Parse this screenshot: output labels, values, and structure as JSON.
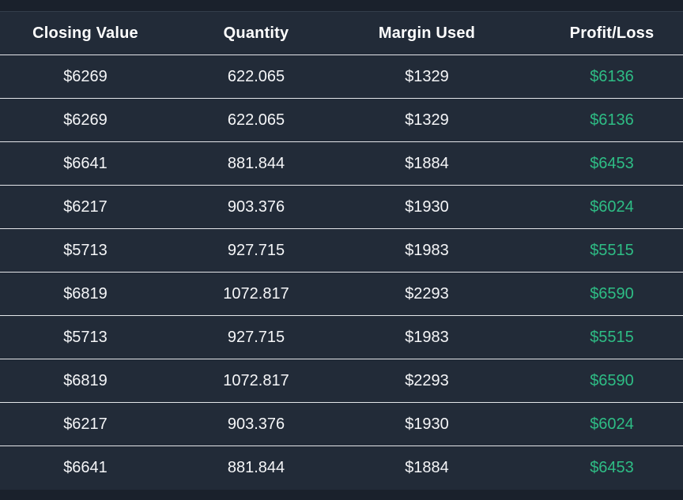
{
  "colors": {
    "page_background": "#1a212c",
    "table_background": "#222b38",
    "row_separator": "#e4e6e9",
    "header_text": "#ffffff",
    "cell_text": "#f5f6f8",
    "profit_green": "#2ebd85"
  },
  "table": {
    "columns": [
      {
        "label": "Closing Value"
      },
      {
        "label": "Quantity"
      },
      {
        "label": "Margin Used"
      },
      {
        "label": "Profit/Loss"
      }
    ],
    "rows": [
      {
        "closing_value": "$6269",
        "quantity": "622.065",
        "margin_used": "$1329",
        "profit_loss": "$6136"
      },
      {
        "closing_value": "$6269",
        "quantity": "622.065",
        "margin_used": "$1329",
        "profit_loss": "$6136"
      },
      {
        "closing_value": "$6641",
        "quantity": "881.844",
        "margin_used": "$1884",
        "profit_loss": "$6453"
      },
      {
        "closing_value": "$6217",
        "quantity": "903.376",
        "margin_used": "$1930",
        "profit_loss": "$6024"
      },
      {
        "closing_value": "$5713",
        "quantity": "927.715",
        "margin_used": "$1983",
        "profit_loss": "$5515"
      },
      {
        "closing_value": "$6819",
        "quantity": "1072.817",
        "margin_used": "$2293",
        "profit_loss": "$6590"
      },
      {
        "closing_value": "$5713",
        "quantity": "927.715",
        "margin_used": "$1983",
        "profit_loss": "$5515"
      },
      {
        "closing_value": "$6819",
        "quantity": "1072.817",
        "margin_used": "$2293",
        "profit_loss": "$6590"
      },
      {
        "closing_value": "$6217",
        "quantity": "903.376",
        "margin_used": "$1930",
        "profit_loss": "$6024"
      },
      {
        "closing_value": "$6641",
        "quantity": "881.844",
        "margin_used": "$1884",
        "profit_loss": "$6453"
      }
    ]
  }
}
